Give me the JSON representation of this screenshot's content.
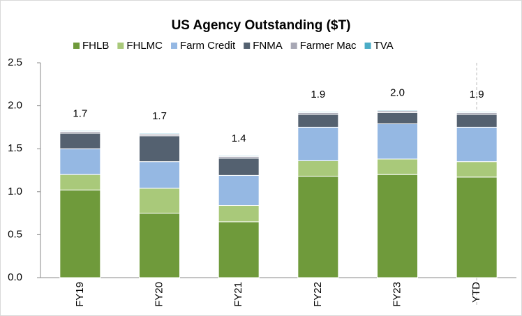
{
  "chart_data": {
    "type": "stacked_bar",
    "title": "US Agency Outstanding ($T)",
    "categories": [
      "FY19",
      "FY20",
      "FY21",
      "FY22",
      "FY23",
      "YTD"
    ],
    "series": [
      {
        "name": "FHLB",
        "color": "#6f9a3b",
        "values": [
          1.02,
          0.75,
          0.65,
          1.18,
          1.2,
          1.17
        ]
      },
      {
        "name": "FHLMC",
        "color": "#a9c97a",
        "values": [
          0.18,
          0.29,
          0.19,
          0.18,
          0.18,
          0.18
        ]
      },
      {
        "name": "Farm Credit",
        "color": "#95b8e3",
        "values": [
          0.3,
          0.31,
          0.35,
          0.39,
          0.41,
          0.4
        ]
      },
      {
        "name": "FNMA",
        "color": "#546170",
        "values": [
          0.18,
          0.3,
          0.2,
          0.15,
          0.13,
          0.15
        ]
      },
      {
        "name": "Farmer Mac",
        "color": "#a7a7b4",
        "values": [
          0.02,
          0.02,
          0.02,
          0.02,
          0.02,
          0.02
        ]
      },
      {
        "name": "TVA",
        "color": "#4bacc6",
        "values": [
          0.01,
          0.01,
          0.01,
          0.01,
          0.01,
          0.01
        ]
      }
    ],
    "total_labels": [
      "1.7",
      "1.7",
      "1.4",
      "1.9",
      "2.0",
      "1.9"
    ],
    "ylim": [
      0,
      2.5
    ],
    "yticks": [
      {
        "value": 0,
        "label": "0.0"
      },
      0.5,
      {
        "value": 1,
        "label": "1.0"
      },
      1.5,
      {
        "value": 2,
        "label": "2.0"
      },
      2.5
    ],
    "legend": "top"
  }
}
